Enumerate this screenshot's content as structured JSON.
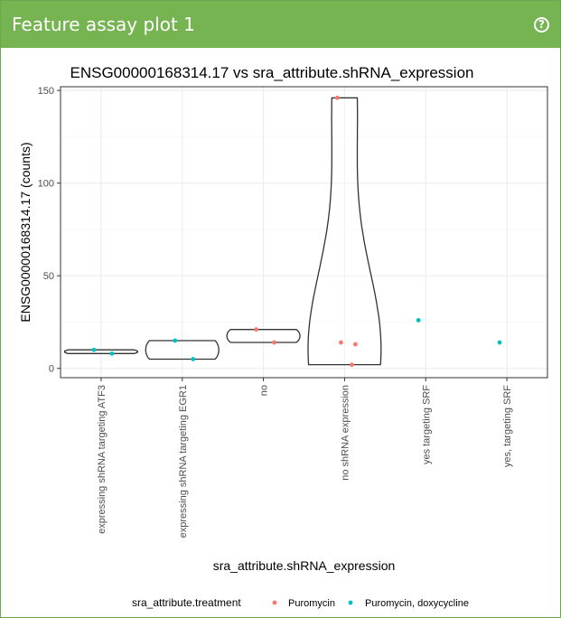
{
  "panel": {
    "title": "Feature assay plot 1",
    "help_icon": "question-circle-icon",
    "help_glyph": "?"
  },
  "colors": {
    "header": "#76b452",
    "Puromycin": "#f8766d",
    "Puromycin, doxycycline": "#00bfc4"
  },
  "chart_data": {
    "type": "violin",
    "title": "ENSG00000168314.17 vs sra_attribute.shRNA_expression",
    "xlabel": "sra_attribute.shRNA_expression",
    "ylabel": "ENSG00000168314.17 (counts)",
    "ylim": [
      -5,
      152
    ],
    "yticks": [
      0,
      50,
      100,
      150
    ],
    "grid": true,
    "categories": [
      "expressing shRNA targeting ATF3",
      "expressing shRNA targeting EGR1",
      "no",
      "no shRNA expression",
      "yes targeting SRF",
      "yes, targeting SRF"
    ],
    "legend": {
      "title": "sra_attribute.treatment",
      "position": "bottom",
      "entries": [
        "Puromycin",
        "Puromycin, doxycycline"
      ]
    },
    "points": [
      {
        "category": "expressing shRNA targeting ATF3",
        "y": 10,
        "treatment": "Puromycin, doxycycline"
      },
      {
        "category": "expressing shRNA targeting ATF3",
        "y": 8,
        "treatment": "Puromycin, doxycycline"
      },
      {
        "category": "expressing shRNA targeting EGR1",
        "y": 15,
        "treatment": "Puromycin, doxycycline"
      },
      {
        "category": "expressing shRNA targeting EGR1",
        "y": 5,
        "treatment": "Puromycin, doxycycline"
      },
      {
        "category": "no",
        "y": 21,
        "treatment": "Puromycin"
      },
      {
        "category": "no",
        "y": 14,
        "treatment": "Puromycin"
      },
      {
        "category": "no shRNA expression",
        "y": 146,
        "treatment": "Puromycin"
      },
      {
        "category": "no shRNA expression",
        "y": 13,
        "treatment": "Puromycin"
      },
      {
        "category": "no shRNA expression",
        "y": 14,
        "treatment": "Puromycin"
      },
      {
        "category": "no shRNA expression",
        "y": 2,
        "treatment": "Puromycin"
      },
      {
        "category": "yes targeting SRF",
        "y": 26,
        "treatment": "Puromycin, doxycycline"
      },
      {
        "category": "yes, targeting SRF",
        "y": 14,
        "treatment": "Puromycin, doxycycline"
      }
    ]
  }
}
